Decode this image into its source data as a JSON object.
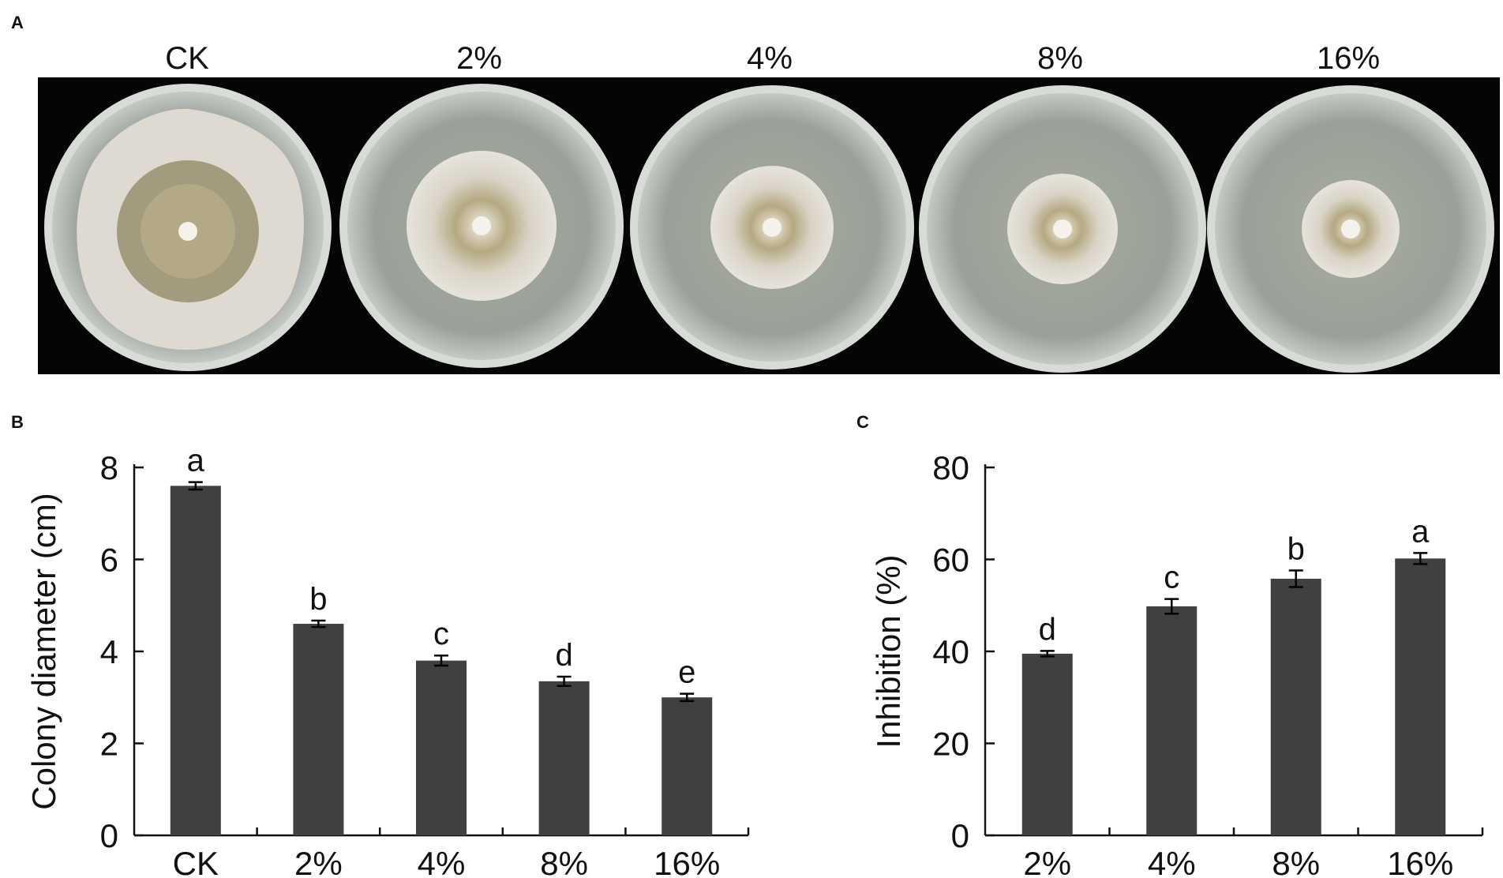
{
  "panels": {
    "a": {
      "label": "A",
      "plates": [
        "CK",
        "2%",
        "4%",
        "8%",
        "16%"
      ]
    },
    "b": {
      "label": "B"
    },
    "c": {
      "label": "C"
    }
  },
  "chart_data": [
    {
      "type": "bar",
      "categories": [
        "CK",
        "2%",
        "4%",
        "8%",
        "16%"
      ],
      "values": [
        7.6,
        4.6,
        3.8,
        3.35,
        3.0
      ],
      "errors": [
        0.08,
        0.07,
        0.11,
        0.1,
        0.08
      ],
      "significance": [
        "a",
        "b",
        "c",
        "d",
        "e"
      ],
      "xlabel": "",
      "ylabel": "Colony diameter (cm)",
      "ylim": [
        0,
        8
      ],
      "yticks": [
        0,
        2,
        4,
        6,
        8
      ],
      "bar_color": "#404040"
    },
    {
      "type": "bar",
      "categories": [
        "2%",
        "4%",
        "8%",
        "16%"
      ],
      "values": [
        39.5,
        49.8,
        55.8,
        60.2
      ],
      "errors": [
        0.6,
        1.6,
        1.8,
        1.2
      ],
      "significance": [
        "d",
        "c",
        "b",
        "a"
      ],
      "xlabel": "",
      "ylabel": "Inhibition (%)",
      "ylim": [
        0,
        80
      ],
      "yticks": [
        0,
        20,
        40,
        60,
        80
      ],
      "bar_color": "#404040"
    }
  ]
}
